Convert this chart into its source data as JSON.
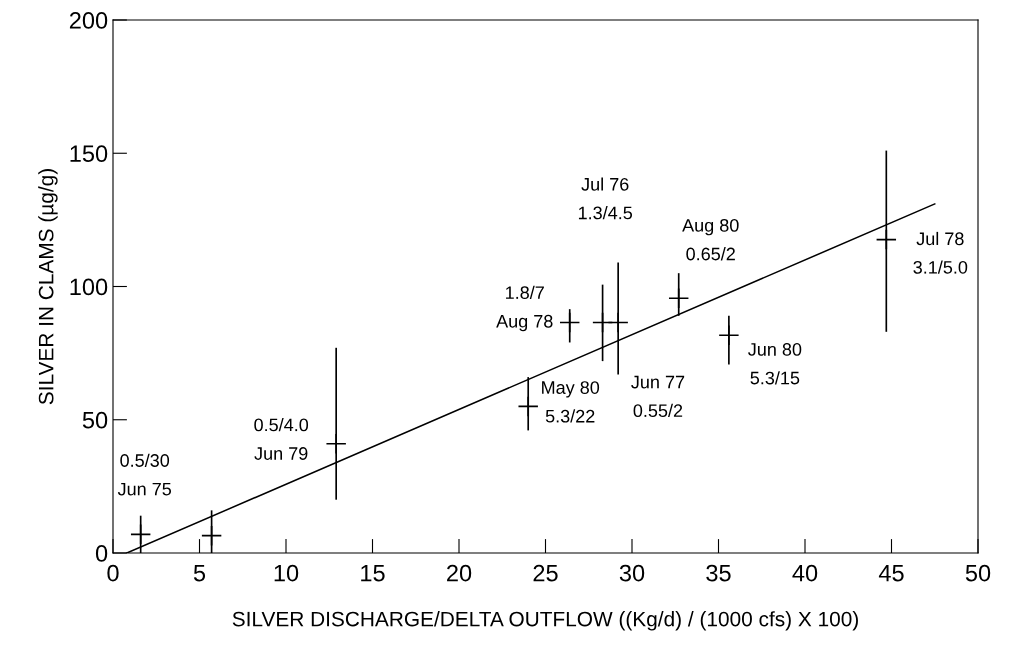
{
  "chart_data": {
    "type": "scatter",
    "xlabel": "SILVER DISCHARGE/DELTA OUTFLOW ((Kg/d) / (1000 cfs) X 100)",
    "ylabel": "SILVER IN CLAMS (µg/g)",
    "xlim": [
      0,
      50
    ],
    "xticks": [
      0,
      5,
      10,
      15,
      20,
      25,
      30,
      35,
      40,
      45,
      50
    ],
    "ylim": [
      0,
      200
    ],
    "yticks": [
      0,
      50,
      100,
      150,
      200
    ],
    "grid": false,
    "legend": false,
    "series": [
      {
        "color": "#000000",
        "marker": "cross",
        "x": [
          1.6,
          5.7,
          12.9,
          24.0,
          26.4,
          28.3,
          29.2,
          32.7,
          35.6,
          44.7
        ],
        "values": [
          7,
          6.5,
          41,
          55,
          86.5,
          86.5,
          86.5,
          95.6,
          81.7,
          117.6
        ],
        "errors": [
          [
            0,
            14
          ],
          [
            0,
            16
          ],
          [
            20,
            77
          ],
          [
            46,
            66
          ],
          [
            79,
            91.5
          ],
          [
            72,
            100.7
          ],
          [
            67,
            109
          ],
          [
            89,
            105
          ],
          [
            70.7,
            89
          ],
          [
            83,
            151
          ]
        ]
      },
      {
        "type": "line",
        "color": "#000000",
        "line_style": "solid",
        "x": [
          0.8,
          47.5
        ],
        "values": [
          0,
          131
        ]
      }
    ],
    "annotations": [
      {
        "text": "0.5/30\nJun 75",
        "x": 1.6,
        "y": 7
      },
      {
        "text": "0.5/4.0\nJun 79",
        "x": 12.9,
        "y": 41
      },
      {
        "text": "1.8/7\nAug 78",
        "x": 26.4,
        "y": 86.5
      },
      "Jul 76\n1.3/4.5",
      "Jun 77\n0.55/2",
      {
        "text": "May 80\n5.3/22",
        "x": 24.0,
        "y": 55
      },
      {
        "text": "Aug 80\n0.65/2",
        "x": 32.7,
        "y": 95.6
      },
      {
        "text": "Jun 80\n5.3/15",
        "x": 35.6,
        "y": 81.7
      },
      {
        "text": "Jul 78\n3.1/5.0",
        "x": 44.7,
        "y": 117.6
      }
    ]
  }
}
